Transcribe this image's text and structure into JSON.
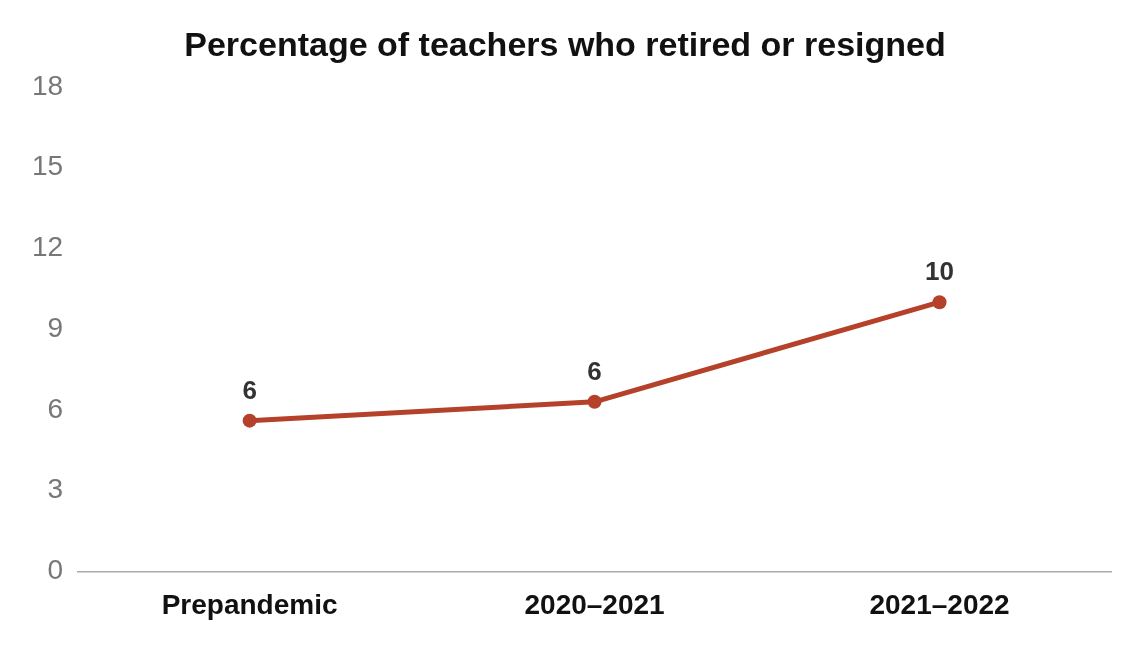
{
  "chart_data": {
    "type": "line",
    "title": "Percentage of teachers who retired or resigned",
    "categories": [
      "Prepandemic",
      "2020–2021",
      "2021–2022"
    ],
    "series": [
      {
        "color": "#b5412a",
        "values": [
          5.6,
          6.3,
          10
        ],
        "value_labels": [
          "6",
          "6",
          "10"
        ]
      }
    ],
    "ylim": [
      0,
      18
    ],
    "yticks": [
      0,
      3,
      6,
      9,
      12,
      15,
      18
    ],
    "grid": false,
    "legend": false,
    "marker": "circle",
    "line_style": "solid"
  }
}
